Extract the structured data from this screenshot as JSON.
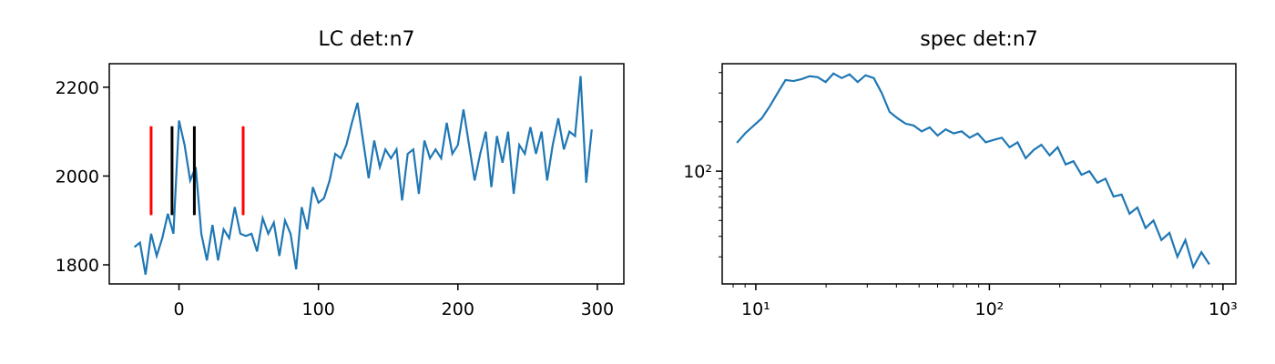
{
  "chart_data": [
    {
      "type": "line",
      "title": "LC det:n7",
      "x": [
        -32,
        -28,
        -24,
        -20,
        -16,
        -12,
        -8,
        -4,
        0,
        4,
        8,
        12,
        16,
        20,
        24,
        28,
        32,
        36,
        40,
        44,
        48,
        52,
        56,
        60,
        64,
        68,
        72,
        76,
        80,
        84,
        88,
        92,
        96,
        100,
        104,
        108,
        112,
        116,
        120,
        124,
        128,
        132,
        136,
        140,
        144,
        148,
        152,
        156,
        160,
        164,
        168,
        172,
        176,
        180,
        184,
        188,
        192,
        196,
        200,
        204,
        208,
        212,
        216,
        220,
        224,
        228,
        232,
        236,
        240,
        244,
        248,
        252,
        256,
        260,
        264,
        268,
        272,
        276,
        280,
        284,
        288,
        292,
        296
      ],
      "series": [
        {
          "name": "LC",
          "color": "#1f77b4",
          "values": [
            1840,
            1850,
            1778,
            1870,
            1820,
            1860,
            1915,
            1870,
            2125,
            2070,
            1990,
            2020,
            1870,
            1810,
            1890,
            1810,
            1880,
            1860,
            1930,
            1870,
            1865,
            1870,
            1830,
            1905,
            1870,
            1895,
            1820,
            1900,
            1870,
            1790,
            1930,
            1880,
            1975,
            1940,
            1950,
            1990,
            2050,
            2040,
            2070,
            2120,
            2165,
            2080,
            1995,
            2080,
            2020,
            2060,
            2040,
            2060,
            1945,
            2050,
            2060,
            1960,
            2080,
            2040,
            2060,
            2040,
            2120,
            2050,
            2070,
            2150,
            2070,
            1990,
            2050,
            2100,
            1975,
            2090,
            2030,
            2100,
            1960,
            2070,
            2050,
            2110,
            2050,
            2100,
            1990,
            2070,
            2130,
            2060,
            2100,
            2090,
            2225,
            1985,
            2105
          ]
        }
      ],
      "vlines": [
        {
          "x": -20,
          "ymin": 1912,
          "ymax": 2112,
          "color": "#ff0000"
        },
        {
          "x": 46,
          "ymin": 1912,
          "ymax": 2112,
          "color": "#ff0000"
        },
        {
          "x": -5,
          "ymin": 1912,
          "ymax": 2112,
          "color": "#000000"
        },
        {
          "x": 11,
          "ymin": 1912,
          "ymax": 2112,
          "color": "#000000"
        }
      ],
      "xlim": [
        -50,
        319
      ],
      "ylim": [
        1757,
        2253
      ],
      "xticks": [
        0,
        100,
        200,
        300
      ],
      "yticks": [
        1800,
        2000,
        2200
      ]
    },
    {
      "type": "line",
      "title": "spec det:n7",
      "xscale": "log",
      "yscale": "log",
      "x": [
        8.3,
        9.0,
        9.8,
        10.6,
        11.5,
        12.4,
        13.4,
        14.5,
        15.7,
        17.0,
        18.4,
        19.9,
        21.5,
        23.3,
        25.2,
        27.3,
        29.5,
        32.0,
        34.6,
        37.4,
        40.5,
        43.8,
        47.4,
        51.3,
        55.5,
        60.0,
        65.0,
        70.3,
        76.1,
        82.3,
        89.1,
        96.4,
        104,
        113,
        122,
        132,
        143,
        155,
        167,
        181,
        196,
        212,
        229,
        248,
        268,
        290,
        314,
        340,
        368,
        398,
        430,
        466,
        504,
        545,
        590,
        638,
        690,
        746,
        808,
        874
      ],
      "series": [
        {
          "name": "spec",
          "color": "#1f77b4",
          "values": [
            149,
            170,
            190,
            210,
            250,
            300,
            360,
            355,
            365,
            380,
            375,
            350,
            395,
            370,
            390,
            350,
            385,
            370,
            300,
            230,
            210,
            195,
            190,
            175,
            185,
            165,
            180,
            170,
            175,
            160,
            170,
            150,
            155,
            160,
            140,
            150,
            120,
            135,
            145,
            125,
            140,
            110,
            115,
            95,
            100,
            85,
            90,
            70,
            72,
            55,
            60,
            45,
            50,
            38,
            42,
            30,
            38,
            26,
            32,
            27
          ]
        }
      ],
      "xlim": [
        7.18,
        1135
      ],
      "ylim": [
        20.5,
        453
      ],
      "xticks": [
        {
          "value": 10,
          "label": "10¹"
        },
        {
          "value": 100,
          "label": "10²"
        },
        {
          "value": 1000,
          "label": "10³"
        }
      ],
      "yticks": [
        {
          "value": 100,
          "label": "10²"
        }
      ]
    }
  ]
}
